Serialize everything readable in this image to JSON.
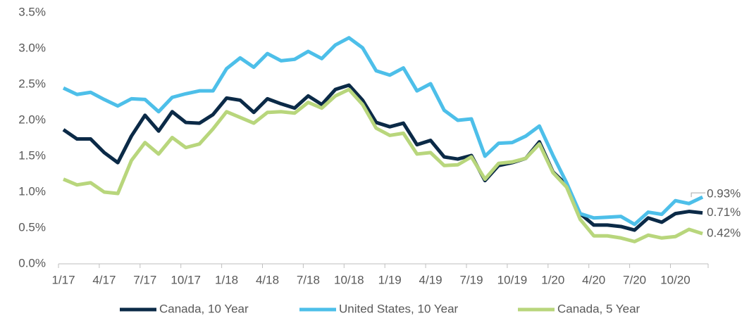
{
  "chart_data": {
    "type": "line",
    "categories": [
      "1/17",
      null,
      null,
      "4/17",
      null,
      null,
      "7/17",
      null,
      null,
      "10/17",
      null,
      null,
      "1/18",
      null,
      null,
      "4/18",
      null,
      null,
      "7/18",
      null,
      null,
      "10/18",
      null,
      null,
      "1/19",
      null,
      null,
      "4/19",
      null,
      null,
      "7/19",
      null,
      null,
      "10/19",
      null,
      null,
      "1/20",
      null,
      null,
      "4/20",
      null,
      null,
      "7/20",
      null,
      null,
      "10/20",
      null,
      null
    ],
    "series": [
      {
        "name": "Canada, 10 Year",
        "color": "#0b2a47",
        "values": [
          1.87,
          1.74,
          1.74,
          1.55,
          1.41,
          1.78,
          2.07,
          1.85,
          2.12,
          1.97,
          1.96,
          2.08,
          2.31,
          2.28,
          2.11,
          2.3,
          2.23,
          2.17,
          2.34,
          2.22,
          2.43,
          2.49,
          2.28,
          1.97,
          1.91,
          1.96,
          1.66,
          1.72,
          1.49,
          1.46,
          1.51,
          1.16,
          1.37,
          1.41,
          1.47,
          1.7,
          1.28,
          1.1,
          0.7,
          0.54,
          0.54,
          0.52,
          0.47,
          0.64,
          0.58,
          0.7,
          0.73,
          0.71
        ],
        "value_labels": [
          null,
          null,
          null,
          null,
          null,
          null,
          null,
          null,
          null,
          null,
          null,
          null,
          null,
          null,
          null,
          null,
          null,
          null,
          null,
          null,
          null,
          null,
          null,
          null,
          null,
          null,
          null,
          null,
          null,
          null,
          null,
          null,
          null,
          null,
          null,
          null,
          null,
          null,
          null,
          null,
          null,
          null,
          null,
          null,
          null,
          null,
          null,
          "0.71%"
        ]
      },
      {
        "name": "United States, 10 Year",
        "color": "#4dbfe9",
        "values": [
          2.45,
          2.36,
          2.39,
          2.29,
          2.2,
          2.3,
          2.29,
          2.12,
          2.32,
          2.37,
          2.41,
          2.41,
          2.72,
          2.87,
          2.74,
          2.93,
          2.83,
          2.85,
          2.96,
          2.86,
          3.05,
          3.15,
          3.01,
          2.69,
          2.63,
          2.73,
          2.41,
          2.51,
          2.14,
          2.0,
          2.02,
          1.5,
          1.68,
          1.69,
          1.78,
          1.92,
          1.51,
          1.13,
          0.7,
          0.64,
          0.65,
          0.66,
          0.55,
          0.72,
          0.69,
          0.88,
          0.84,
          0.93
        ],
        "value_labels": [
          null,
          null,
          null,
          null,
          null,
          null,
          null,
          null,
          null,
          null,
          null,
          null,
          null,
          null,
          null,
          null,
          null,
          null,
          null,
          null,
          null,
          null,
          null,
          null,
          null,
          null,
          null,
          null,
          null,
          null,
          null,
          null,
          null,
          null,
          null,
          null,
          null,
          null,
          null,
          null,
          null,
          null,
          null,
          null,
          null,
          null,
          null,
          "0.93%"
        ]
      },
      {
        "name": "Canada, 5 Year",
        "color": "#b8d67c",
        "values": [
          1.18,
          1.1,
          1.13,
          1.0,
          0.98,
          1.44,
          1.69,
          1.53,
          1.76,
          1.62,
          1.67,
          1.88,
          2.12,
          2.04,
          1.96,
          2.11,
          2.12,
          2.1,
          2.25,
          2.17,
          2.34,
          2.43,
          2.22,
          1.89,
          1.79,
          1.82,
          1.53,
          1.55,
          1.37,
          1.38,
          1.49,
          1.18,
          1.4,
          1.42,
          1.47,
          1.67,
          1.27,
          1.07,
          0.62,
          0.39,
          0.39,
          0.36,
          0.31,
          0.4,
          0.36,
          0.38,
          0.48,
          0.42
        ],
        "value_labels": [
          null,
          null,
          null,
          null,
          null,
          null,
          null,
          null,
          null,
          null,
          null,
          null,
          null,
          null,
          null,
          null,
          null,
          null,
          null,
          null,
          null,
          null,
          null,
          null,
          null,
          null,
          null,
          null,
          null,
          null,
          null,
          null,
          null,
          null,
          null,
          null,
          null,
          null,
          null,
          null,
          null,
          null,
          null,
          null,
          null,
          null,
          null,
          "0.42%"
        ]
      }
    ],
    "ylim": [
      0,
      3.5
    ],
    "yticks": [
      {
        "value": 0,
        "label": "0.0%"
      },
      {
        "value": 0.5,
        "label": "0.5%"
      },
      {
        "value": 1,
        "label": "1.0%"
      },
      {
        "value": 1.5,
        "label": "1.5%"
      },
      {
        "value": 2,
        "label": "2.0%"
      },
      {
        "value": 2.5,
        "label": "2.5%"
      },
      {
        "value": 3,
        "label": "3.0%"
      },
      {
        "value": 3.5,
        "label": "3.5%"
      }
    ],
    "grid": false,
    "legend": "bottom"
  }
}
